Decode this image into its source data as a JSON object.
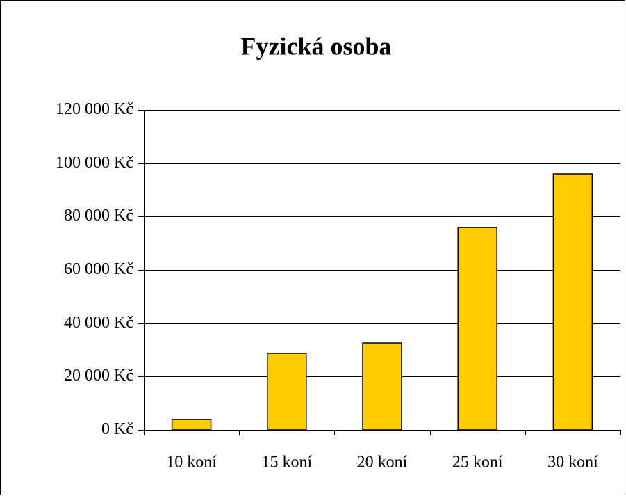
{
  "chart_data": {
    "type": "bar",
    "title": "Fyzická osoba",
    "categories": [
      "10 koní",
      "15 koní",
      "20 koní",
      "25 koní",
      "30 koní"
    ],
    "values": [
      3900,
      28700,
      32600,
      75900,
      96000
    ],
    "color": "#ffcc00",
    "ylim": [
      0,
      120000
    ],
    "yticks": [
      {
        "value": 0,
        "label": "0 Kč"
      },
      {
        "value": 20000,
        "label": "20 000 Kč"
      },
      {
        "value": 40000,
        "label": "40 000 Kč"
      },
      {
        "value": 60000,
        "label": "60 000 Kč"
      },
      {
        "value": 80000,
        "label": "80 000 Kč"
      },
      {
        "value": 100000,
        "label": "100 000 Kč"
      },
      {
        "value": 120000,
        "label": "120 000 Kč"
      }
    ],
    "grid": true
  }
}
